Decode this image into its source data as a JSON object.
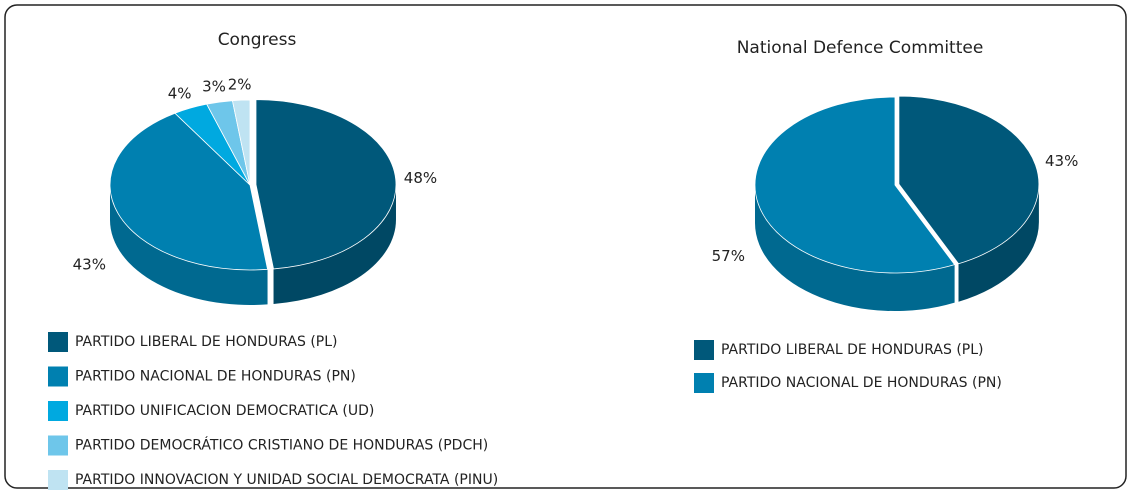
{
  "chart_data": [
    {
      "type": "pie",
      "title": "Congress",
      "categories": [
        "PARTIDO LIBERAL DE HONDURAS (PL)",
        "PARTIDO NACIONAL DE HONDURAS (PN)",
        "PARTIDO UNIFICACION DEMOCRATICA (UD)",
        "PARTIDO DEMOCRÁTICO CRISTIANO DE HONDURAS (PDCH)",
        "PARTIDO INNOVACION Y UNIDAD SOCIAL DEMOCRATA (PINU)"
      ],
      "values": [
        48,
        43,
        4,
        3,
        2
      ],
      "value_labels": [
        "48%",
        "43%",
        "4%",
        "3%",
        "2%"
      ],
      "colors": [
        "#00587a",
        "#0080b0",
        "#00a9e0",
        "#6ec6ea",
        "#bfe3f2"
      ]
    },
    {
      "type": "pie",
      "title": "National Defence Committee",
      "categories": [
        "PARTIDO LIBERAL DE HONDURAS (PL)",
        "PARTIDO NACIONAL DE HONDURAS (PN)"
      ],
      "values": [
        43,
        57
      ],
      "value_labels": [
        "43%",
        "57%"
      ],
      "colors": [
        "#00587a",
        "#0080b0"
      ]
    }
  ]
}
